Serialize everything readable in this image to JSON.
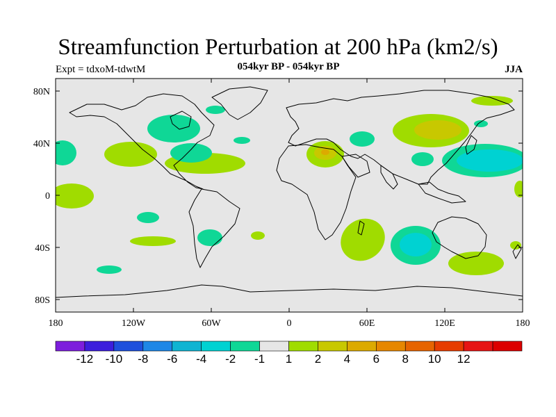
{
  "title": "Streamfunction Perturbation at 200 hPa (km2/s)",
  "subtitle": "054kyr BP - 054kyr BP",
  "left_label": "Expt = tdxoM-tdwtM",
  "right_label": "JJA",
  "map": {
    "lon_range": [
      -180,
      180
    ],
    "lat_range": [
      -90,
      90
    ],
    "background_color": "#e6e6e6",
    "y_ticks": [
      "80N",
      "40N",
      "0",
      "40S",
      "80S"
    ],
    "x_ticks": [
      "180",
      "120W",
      "60W",
      "0",
      "60E",
      "120E",
      "180"
    ]
  },
  "colorbar": {
    "colors": [
      "#7d1edc",
      "#3c1edc",
      "#1e50dc",
      "#1e87e6",
      "#0fb4d2",
      "#00d2d2",
      "#0fd796",
      "#e6e6e6",
      "#a0dc00",
      "#c8c800",
      "#dcaa00",
      "#e68700",
      "#e66400",
      "#e63c00",
      "#e61414",
      "#dc0000"
    ],
    "labels": [
      "-12",
      "-10",
      "-8",
      "-6",
      "-4",
      "-2",
      "-1",
      "1",
      "2",
      "4",
      "6",
      "8",
      "10",
      "12"
    ]
  }
}
